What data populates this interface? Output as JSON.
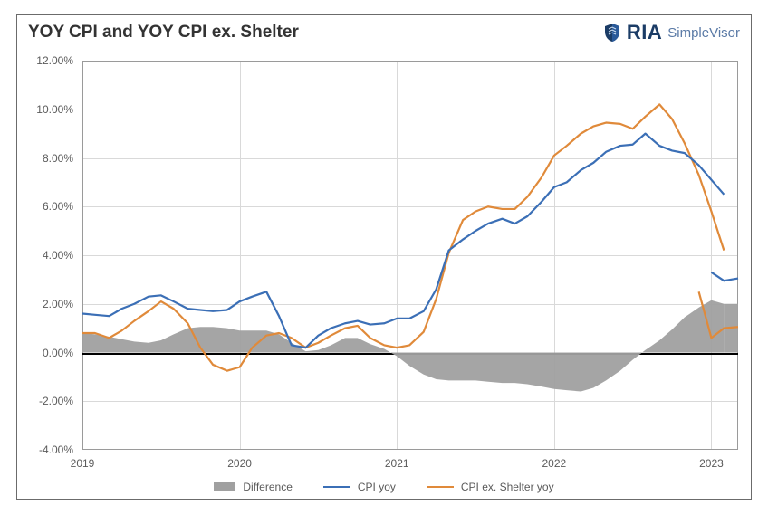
{
  "title": "YOY CPI and YOY CPI ex. Shelter",
  "brand": {
    "name": "RIA",
    "product": "SimpleVisor",
    "icon_color": "#1b3c66"
  },
  "chart": {
    "type": "line+area",
    "background_color": "#ffffff",
    "grid_color": "#d9d9d9",
    "border_color": "#9a9a9a",
    "zero_line_color": "#000000",
    "title_fontsize": 19,
    "label_fontsize": 12,
    "label_color": "#5a5a5a",
    "y": {
      "min": -4.0,
      "max": 12.0,
      "step": 2.0,
      "format_suffix": "%",
      "ticks": [
        "12.00%",
        "10.00%",
        "8.00%",
        "6.00%",
        "4.00%",
        "2.00%",
        "0.00%",
        "-2.00%",
        "-4.00%"
      ]
    },
    "x": {
      "min": 2019.0,
      "max": 2023.17,
      "tick_positions": [
        2019,
        2020,
        2021,
        2022,
        2023
      ],
      "tick_labels": [
        "2019",
        "2020",
        "2021",
        "2022",
        "2023"
      ]
    },
    "x_values": [
      2019.0,
      2019.08,
      2019.17,
      2019.25,
      2019.33,
      2019.42,
      2019.5,
      2019.58,
      2019.67,
      2019.75,
      2019.83,
      2019.92,
      2020.0,
      2020.08,
      2020.17,
      2020.25,
      2020.33,
      2020.42,
      2020.5,
      2020.58,
      2020.67,
      2020.75,
      2020.83,
      2020.92,
      2021.0,
      2021.08,
      2021.17,
      2021.25,
      2021.33,
      2021.42,
      2021.5,
      2021.58,
      2021.67,
      2021.75,
      2021.83,
      2021.92,
      2022.0,
      2022.08,
      2022.17,
      2022.25,
      2022.33,
      2022.42,
      2022.5,
      2022.58,
      2022.67,
      2022.75,
      2022.83,
      2022.92,
      2023.0,
      2023.08
    ],
    "series": {
      "difference": {
        "label": "Difference",
        "type": "area",
        "color": "#a0a0a0",
        "opacity": 0.95,
        "values": [
          0.8,
          0.75,
          0.65,
          0.55,
          0.45,
          0.4,
          0.5,
          0.75,
          1.0,
          1.05,
          1.05,
          1.0,
          0.9,
          0.9,
          0.9,
          0.75,
          0.4,
          0.05,
          0.1,
          0.3,
          0.6,
          0.6,
          0.35,
          0.15,
          -0.15,
          -0.55,
          -0.9,
          -1.1,
          -1.15,
          -1.15,
          -1.15,
          -1.2,
          -1.25,
          -1.25,
          -1.3,
          -1.4,
          -1.5,
          -1.55,
          -1.6,
          -1.45,
          -1.15,
          -0.75,
          -0.3,
          0.1,
          0.5,
          0.95,
          1.45,
          1.85,
          2.15,
          2.0
        ]
      },
      "cpi": {
        "label": "CPI yoy",
        "type": "line",
        "color": "#3b6fb6",
        "line_width": 2.2,
        "values": [
          1.6,
          1.55,
          1.5,
          1.8,
          2.0,
          2.3,
          2.35,
          2.1,
          1.8,
          1.75,
          1.7,
          1.75,
          2.1,
          2.3,
          2.5,
          1.5,
          0.3,
          0.2,
          0.7,
          1.0,
          1.2,
          1.3,
          1.15,
          1.2,
          1.4,
          1.4,
          1.7,
          2.6,
          4.2,
          4.65,
          5.0,
          5.3,
          5.5,
          5.3,
          5.6,
          6.2,
          6.8,
          7.0,
          7.5,
          7.8,
          8.25,
          8.5,
          8.55,
          9.0,
          8.5,
          8.3,
          8.2,
          7.7,
          7.1,
          6.5
        ]
      },
      "cpi_ex_shelter": {
        "label": "CPI ex. Shelter yoy",
        "type": "line",
        "color": "#e08a3a",
        "line_width": 2.2,
        "values": [
          0.8,
          0.8,
          0.6,
          0.9,
          1.3,
          1.7,
          2.1,
          1.8,
          1.2,
          0.2,
          -0.5,
          -0.75,
          -0.6,
          0.2,
          0.7,
          0.8,
          0.6,
          0.2,
          0.4,
          0.7,
          1.0,
          1.1,
          0.6,
          0.3,
          0.2,
          0.3,
          0.85,
          2.2,
          4.1,
          5.45,
          5.8,
          6.0,
          5.9,
          5.9,
          6.4,
          7.2,
          8.1,
          8.5,
          9.0,
          9.3,
          9.45,
          9.4,
          9.2,
          9.7,
          10.2,
          9.6,
          8.6,
          7.3,
          5.8,
          4.2
        ]
      },
      "cpi_ex_shelter_tail": {
        "color": "#e08a3a",
        "line_width": 2.2,
        "x": [
          2022.92,
          2023.0,
          2023.08,
          2023.17
        ],
        "y": [
          2.5,
          0.6,
          1.0,
          1.05
        ]
      },
      "cpi_tail": {
        "color": "#3b6fb6",
        "line_width": 2.2,
        "x": [
          2023.0,
          2023.08,
          2023.17
        ],
        "y": [
          3.3,
          2.95,
          3.05
        ]
      }
    },
    "legend": {
      "position": "bottom-center",
      "items": [
        "difference",
        "cpi",
        "cpi_ex_shelter"
      ]
    }
  }
}
